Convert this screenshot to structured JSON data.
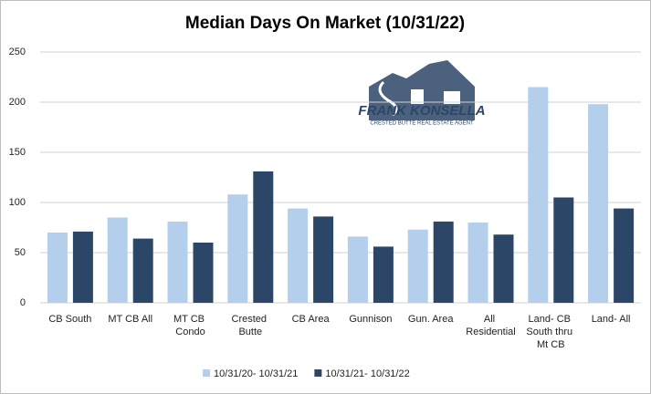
{
  "chart_data": {
    "type": "bar",
    "title": "Median Days On Market (10/31/22)",
    "categories": [
      "CB South",
      "MT CB All",
      "MT CB Condo",
      "Crested Butte",
      "CB Area",
      "Gunnison",
      "Gun. Area",
      "All Residential",
      "Land- CB South thru Mt CB",
      "Land- All"
    ],
    "series": [
      {
        "name": "10/31/20- 10/31/21",
        "color": "#b4cfec",
        "values": [
          70,
          85,
          81,
          108,
          94,
          66,
          73,
          80,
          215,
          198
        ]
      },
      {
        "name": "10/31/21- 10/31/22",
        "color": "#2c4668",
        "values": [
          71,
          64,
          60,
          131,
          86,
          56,
          81,
          68,
          105,
          94
        ]
      }
    ],
    "ylim": [
      0,
      250
    ],
    "yticks": [
      0,
      50,
      100,
      150,
      200,
      250
    ],
    "grid": true,
    "legend": "bottom",
    "annotations": [
      "FRANK KONSELLA",
      "CRESTED BUTTE REAL ESTATE AGENT"
    ]
  }
}
